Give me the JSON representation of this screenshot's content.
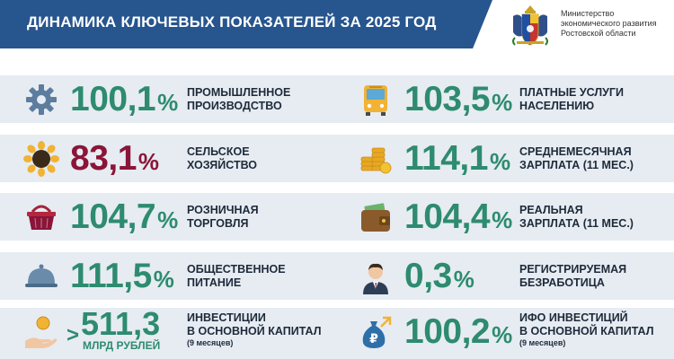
{
  "header": {
    "title": "ДИНАМИКА КЛЮЧЕВЫХ ПОКАЗАТЕЛЕЙ ЗА 2025 ГОД",
    "ministry_line1": "Министерство",
    "ministry_line2": "экономического развития",
    "ministry_line3": "Ростовской области"
  },
  "colors": {
    "banner": "#27558e",
    "row_bg": "#e6ecf2",
    "value_green": "#2e8b6f",
    "value_red": "#8a1538"
  },
  "indicators": [
    {
      "icon": "gear-icon",
      "value": "100,1",
      "unit": "%",
      "label1": "ПРОМЫШЛЕННОЕ",
      "label2": "ПРОИЗВОДСТВО"
    },
    {
      "icon": "bus-icon",
      "value": "103,5",
      "unit": "%",
      "label1": "ПЛАТНЫЕ УСЛУГИ",
      "label2": "НАСЕЛЕНИЮ"
    },
    {
      "icon": "sunflower-icon",
      "value": "83,1",
      "unit": "%",
      "label1": "СЕЛЬСКОЕ",
      "label2": "ХОЗЯЙСТВО"
    },
    {
      "icon": "coins-icon",
      "value": "114,1",
      "unit": "%",
      "label1": "СРЕДНЕМЕСЯЧНАЯ",
      "label2": "ЗАРПЛАТА (11 МЕС.)"
    },
    {
      "icon": "basket-icon",
      "value": "104,7",
      "unit": "%",
      "label1": "РОЗНИЧНАЯ",
      "label2": "ТОРГОВЛЯ"
    },
    {
      "icon": "wallet-icon",
      "value": "104,4",
      "unit": "%",
      "label1": "РЕАЛЬНАЯ",
      "label2": "ЗАРПЛАТА (11 МЕС.)"
    },
    {
      "icon": "cloche-icon",
      "value": "111,5",
      "unit": "%",
      "label1": "ОБЩЕСТВЕННОЕ",
      "label2": "ПИТАНИЕ"
    },
    {
      "icon": "person-icon",
      "value": "0,3",
      "unit": "%",
      "label1": "РЕГИСТРИРУЕМАЯ",
      "label2": "БЕЗРАБОТИЦА"
    },
    {
      "icon": "hand-coin-icon",
      "prefix": ">",
      "value": "511,3",
      "unit": "МЛРД РУБЛЕЙ",
      "label1": "ИНВЕСТИЦИИ",
      "label2": "В ОСНОВНОЙ КАПИТАЛ",
      "note": "(9 месяцев)"
    },
    {
      "icon": "ruble-bag-icon",
      "value": "100,2",
      "unit": "%",
      "label1": "ИФО ИНВЕСТИЦИЙ",
      "label2": "В ОСНОВНОЙ КАПИТАЛ",
      "note": "(9 месяцев)"
    }
  ]
}
